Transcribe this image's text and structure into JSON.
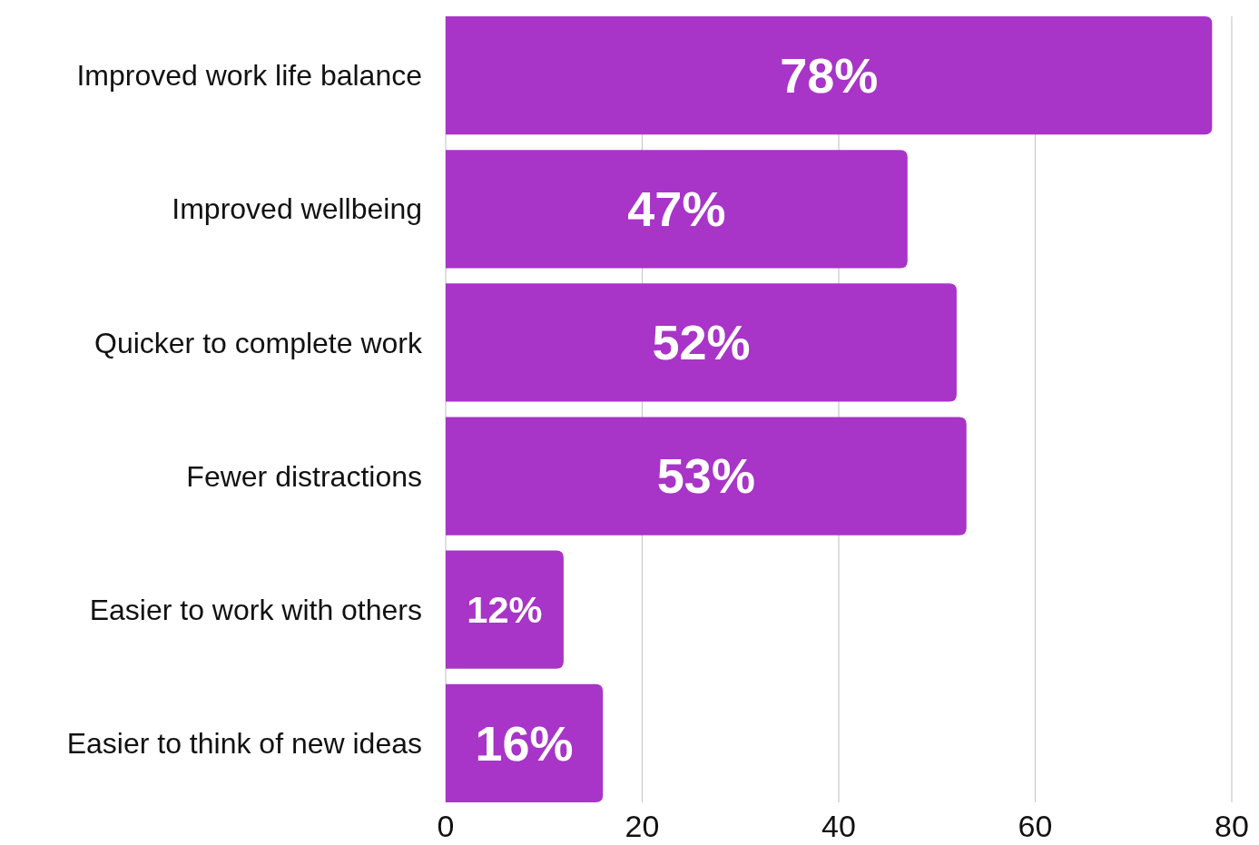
{
  "chart_data": {
    "type": "bar",
    "orientation": "horizontal",
    "categories": [
      "Improved work life balance",
      "Improved wellbeing",
      "Quicker to complete work",
      "Fewer distractions",
      "Easier to work with others",
      "Easier to think of new ideas"
    ],
    "values": [
      78,
      47,
      52,
      53,
      12,
      16
    ],
    "value_labels": [
      "78%",
      "47%",
      "52%",
      "53%",
      "12%",
      "16%"
    ],
    "color": "#a834c8",
    "xlim": [
      0,
      80
    ],
    "xticks": [
      0,
      20,
      40,
      60,
      80
    ],
    "grid": "x"
  }
}
